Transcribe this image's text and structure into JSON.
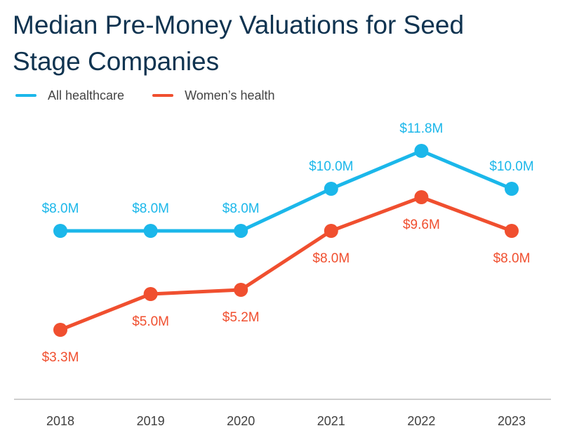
{
  "title_lines": [
    "Median Pre-Money Valuations for Seed",
    "Stage Companies"
  ],
  "colors": {
    "all_healthcare": "#1bb7ea",
    "womens_health": "#f04f2f",
    "axis": "#bfbfbf",
    "tick_text": "#404040"
  },
  "chart_data": {
    "type": "line",
    "title": "Median Pre-Money Valuations for Seed Stage Companies",
    "categories": [
      "2018",
      "2019",
      "2020",
      "2021",
      "2022",
      "2023"
    ],
    "xlabel": "",
    "ylabel": "",
    "ylim": [
      0,
      13
    ],
    "grid": false,
    "legend": "top-left",
    "series": [
      {
        "name": "All healthcare",
        "key": "all_healthcare",
        "values": [
          8.0,
          8.0,
          8.0,
          10.0,
          11.8,
          10.0
        ],
        "labels": [
          "$8.0M",
          "$8.0M",
          "$8.0M",
          "$10.0M",
          "$11.8M",
          "$10.0M"
        ],
        "label_side": [
          "above",
          "above",
          "above",
          "above",
          "above",
          "above"
        ]
      },
      {
        "name": "Women’s health",
        "key": "womens_health",
        "values": [
          3.3,
          5.0,
          5.2,
          8.0,
          9.6,
          8.0
        ],
        "labels": [
          "$3.3M",
          "$5.0M",
          "$5.2M",
          "$8.0M",
          "$9.6M",
          "$8.0M"
        ],
        "label_side": [
          "below",
          "below",
          "below",
          "below",
          "below",
          "below"
        ]
      }
    ]
  }
}
